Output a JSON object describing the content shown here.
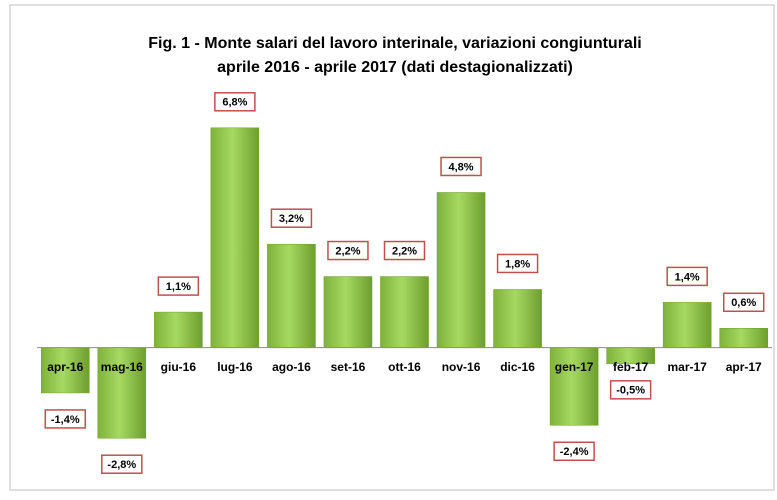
{
  "chart_data": {
    "type": "bar",
    "title": [
      "Fig. 1 - Monte  salari del lavoro interinale, variazioni congiunturali",
      "aprile 2016 - aprile 2017 (dati destagionalizzati)"
    ],
    "categories": [
      "apr-16",
      "mag-16",
      "giu-16",
      "lug-16",
      "ago-16",
      "set-16",
      "ott-16",
      "nov-16",
      "dic-16",
      "gen-17",
      "feb-17",
      "mar-17",
      "apr-17"
    ],
    "values": [
      -1.4,
      -2.8,
      1.1,
      6.8,
      3.2,
      2.2,
      2.2,
      4.8,
      1.8,
      -2.4,
      -0.5,
      1.4,
      0.6
    ],
    "value_labels": [
      "-1,4%",
      "-2,8%",
      "1,1%",
      "6,8%",
      "3,2%",
      "2,2%",
      "2,2%",
      "4,8%",
      "1,8%",
      "-2,4%",
      "-0,5%",
      "1,4%",
      "0,6%"
    ],
    "color": "#92d050",
    "ylim": [
      -4,
      8
    ]
  }
}
